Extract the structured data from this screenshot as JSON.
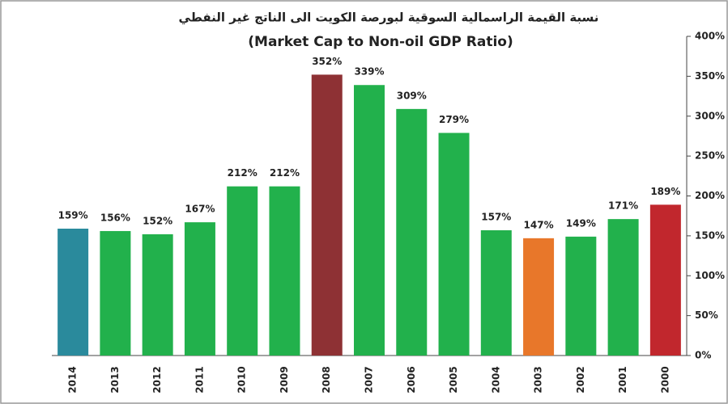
{
  "chart_data": {
    "type": "bar",
    "title": "نسبة القيمة الراسمالية السوقية لبورصة الكويت الى الناتج غير النفطي",
    "subtitle": "(Market Cap to Non-oil GDP Ratio)",
    "categories": [
      "2014",
      "2013",
      "2012",
      "2011",
      "2010",
      "2009",
      "2008",
      "2007",
      "2006",
      "2005",
      "2004",
      "2003",
      "2002",
      "2001",
      "2000"
    ],
    "values": [
      159,
      156,
      152,
      167,
      212,
      212,
      352,
      339,
      309,
      279,
      157,
      147,
      149,
      171,
      189
    ],
    "value_labels": [
      "159%",
      "156%",
      "152%",
      "167%",
      "212%",
      "212%",
      "352%",
      "339%",
      "309%",
      "279%",
      "157%",
      "147%",
      "149%",
      "171%",
      "189%"
    ],
    "colors": [
      "#2a8a9c",
      "#22b14c",
      "#22b14c",
      "#22b14c",
      "#22b14c",
      "#22b14c",
      "#8e3134",
      "#22b14c",
      "#22b14c",
      "#22b14c",
      "#22b14c",
      "#e8772a",
      "#22b14c",
      "#22b14c",
      "#c1272d"
    ],
    "ylim": [
      0,
      400
    ],
    "yticks": [
      {
        "value": 0,
        "label": "0%"
      },
      {
        "value": 50,
        "label": "50%"
      },
      {
        "value": 100,
        "label": "100%"
      },
      {
        "value": 150,
        "label": "150%"
      },
      {
        "value": 200,
        "label": "200%"
      },
      {
        "value": 250,
        "label": "250%"
      },
      {
        "value": 300,
        "label": "300%"
      },
      {
        "value": 350,
        "label": "350%"
      },
      {
        "value": 400,
        "label": "400%"
      }
    ],
    "grid": false
  }
}
